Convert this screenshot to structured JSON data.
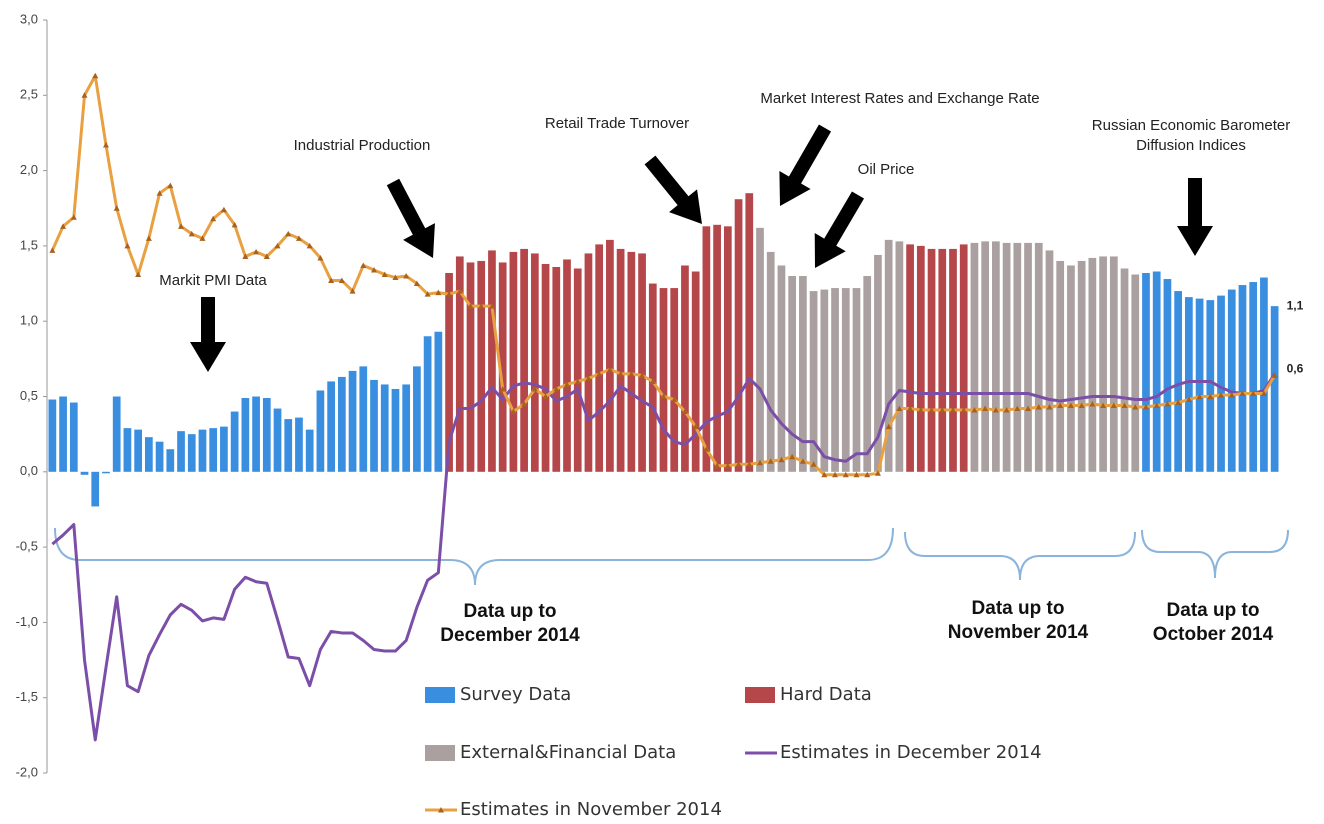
{
  "chart_data": {
    "type": "combo",
    "ylim": [
      -2,
      3
    ],
    "yticks": [
      {
        "value": 3,
        "label": "3,0"
      },
      {
        "value": 2.5,
        "label": "2,5"
      },
      {
        "value": 2,
        "label": "2,0"
      },
      {
        "value": 1.5,
        "label": "1,5"
      },
      {
        "value": 1,
        "label": "1,0"
      },
      {
        "value": 0.5,
        "label": "0,5"
      },
      {
        "value": 0,
        "label": "0,0"
      },
      {
        "value": -0.5,
        "label": "-0,5"
      },
      {
        "value": -1,
        "label": "-1,0"
      },
      {
        "value": -1.5,
        "label": "-1,5"
      },
      {
        "value": -2,
        "label": "-2,0"
      }
    ],
    "series": [
      {
        "name": "Survey Data",
        "type": "bar",
        "color": "#3a8ee0",
        "values": [
          0.48,
          0.5,
          0.46,
          -0.02,
          -0.23,
          -0.01,
          0.5,
          0.29,
          0.28,
          0.23,
          0.2,
          0.15,
          0.27,
          0.25,
          0.28,
          0.29,
          0.3,
          0.4,
          0.49,
          0.5,
          0.49,
          0.42,
          0.35,
          0.36,
          0.28,
          0.54,
          0.6,
          0.63,
          0.67,
          0.7,
          0.61,
          0.58,
          0.55,
          0.58,
          0.7,
          0.9,
          0.93,
          null,
          null,
          null,
          null,
          null,
          null,
          null,
          null,
          null,
          null,
          null,
          null,
          null,
          null,
          null,
          null,
          null,
          null,
          null,
          null,
          null,
          null,
          null,
          null,
          null,
          null,
          null,
          null,
          null,
          null,
          null,
          null,
          null,
          null,
          null,
          null,
          null,
          null,
          null,
          null,
          null,
          null,
          null,
          null,
          null,
          null,
          null,
          null,
          null,
          null,
          null,
          null,
          null,
          null,
          null,
          null,
          null,
          null,
          null,
          null,
          null,
          null,
          null,
          null,
          null,
          1.32,
          1.33,
          1.28,
          1.2,
          1.16,
          1.15,
          1.14,
          1.17,
          1.21,
          1.24,
          1.26,
          1.29,
          1.1
        ],
        "value_labels": [
          null,
          null,
          null,
          null,
          null,
          null,
          null,
          null,
          null,
          null,
          null,
          null,
          null,
          null,
          null,
          null,
          null,
          null,
          null,
          null,
          null,
          null,
          null,
          null,
          null,
          null,
          null,
          null,
          null,
          null,
          null,
          null,
          null,
          null,
          null,
          null,
          null,
          null,
          null,
          null,
          null,
          null,
          null,
          null,
          null,
          null,
          null,
          null,
          null,
          null,
          null,
          null,
          null,
          null,
          null,
          null,
          null,
          null,
          null,
          null,
          null,
          null,
          null,
          null,
          null,
          null,
          null,
          null,
          null,
          null,
          null,
          null,
          null,
          null,
          null,
          null,
          null,
          null,
          null,
          null,
          null,
          null,
          null,
          null,
          null,
          null,
          null,
          null,
          null,
          null,
          null,
          null,
          null,
          null,
          null,
          null,
          null,
          null,
          null,
          null,
          null,
          null,
          null,
          null,
          null,
          null,
          null,
          null,
          null,
          null,
          null,
          null,
          null,
          null,
          "1,1"
        ]
      },
      {
        "name": "Hard Data",
        "type": "bar",
        "color": "#b5474a",
        "values": [
          null,
          null,
          null,
          null,
          null,
          null,
          null,
          null,
          null,
          null,
          null,
          null,
          null,
          null,
          null,
          null,
          null,
          null,
          null,
          null,
          null,
          null,
          null,
          null,
          null,
          null,
          null,
          null,
          null,
          null,
          null,
          null,
          null,
          null,
          null,
          null,
          null,
          1.32,
          1.43,
          1.39,
          1.4,
          1.47,
          1.39,
          1.46,
          1.48,
          1.45,
          1.38,
          1.36,
          1.41,
          1.35,
          1.45,
          1.51,
          1.54,
          1.48,
          1.46,
          1.45,
          1.25,
          1.22,
          1.22,
          1.37,
          1.33,
          1.63,
          1.64,
          1.63,
          1.81,
          1.85,
          null,
          null,
          null,
          null,
          null,
          null,
          null,
          null,
          null,
          null,
          null,
          null,
          null,
          null,
          1.51,
          1.5,
          1.48,
          1.48,
          1.48,
          1.51,
          null,
          null,
          null,
          null,
          null,
          null,
          null,
          null,
          null,
          null,
          null,
          null,
          null,
          null,
          null,
          null,
          null,
          null,
          null,
          null,
          null,
          null,
          null,
          null,
          null,
          null,
          null,
          null,
          null
        ]
      },
      {
        "name": "External&Financial Data",
        "type": "bar",
        "color": "#aaa0a0",
        "values": [
          null,
          null,
          null,
          null,
          null,
          null,
          null,
          null,
          null,
          null,
          null,
          null,
          null,
          null,
          null,
          null,
          null,
          null,
          null,
          null,
          null,
          null,
          null,
          null,
          null,
          null,
          null,
          null,
          null,
          null,
          null,
          null,
          null,
          null,
          null,
          null,
          null,
          null,
          null,
          null,
          null,
          null,
          null,
          null,
          null,
          null,
          null,
          null,
          null,
          null,
          null,
          null,
          null,
          null,
          null,
          null,
          null,
          null,
          null,
          null,
          null,
          null,
          null,
          null,
          null,
          null,
          1.62,
          1.46,
          1.37,
          1.3,
          1.3,
          1.2,
          1.21,
          1.22,
          1.22,
          1.22,
          1.3,
          1.44,
          1.54,
          1.53,
          null,
          null,
          null,
          null,
          null,
          null,
          1.52,
          1.53,
          1.53,
          1.52,
          1.52,
          1.52,
          1.52,
          1.47,
          1.4,
          1.37,
          1.4,
          1.42,
          1.43,
          1.43,
          1.35,
          1.31,
          null,
          null,
          null,
          null,
          null,
          null,
          null,
          null,
          null,
          null,
          null,
          null,
          null
        ]
      },
      {
        "name": "Estimates in December 2014",
        "type": "line",
        "color": "#7b4fa8",
        "values": [
          -0.48,
          -0.42,
          -0.35,
          -1.25,
          -1.78,
          -1.3,
          -0.83,
          -1.42,
          -1.46,
          -1.22,
          -1.08,
          -0.95,
          -0.88,
          -0.92,
          -0.99,
          -0.97,
          -0.98,
          -0.78,
          -0.7,
          -0.73,
          -0.74,
          -0.98,
          -1.23,
          -1.24,
          -1.42,
          -1.18,
          -1.06,
          -1.07,
          -1.07,
          -1.12,
          -1.18,
          -1.19,
          -1.19,
          -1.12,
          -0.9,
          -0.72,
          -0.67,
          0.2,
          0.42,
          0.42,
          0.47,
          0.56,
          0.48,
          0.57,
          0.59,
          0.58,
          0.55,
          0.47,
          0.5,
          0.55,
          0.34,
          0.4,
          0.47,
          0.57,
          0.52,
          0.47,
          0.43,
          0.28,
          0.2,
          0.18,
          0.25,
          0.33,
          0.37,
          0.4,
          0.5,
          0.62,
          0.55,
          0.41,
          0.32,
          0.25,
          0.2,
          0.2,
          0.1,
          0.08,
          0.07,
          0.12,
          0.12,
          0.23,
          0.45,
          0.54,
          0.53,
          0.52,
          0.52,
          0.52,
          0.52,
          0.52,
          0.52,
          0.52,
          0.52,
          0.52,
          0.52,
          0.52,
          0.5,
          0.48,
          0.47,
          0.48,
          0.49,
          0.5,
          0.5,
          0.5,
          0.49,
          0.48,
          0.48,
          0.5,
          0.55,
          0.58,
          0.6,
          0.6,
          0.6,
          0.56,
          0.53,
          0.52,
          0.52,
          0.54,
          0.65
        ]
      },
      {
        "name": "Estimates in November 2014",
        "type": "line",
        "color": "#e8a040",
        "marker_color": "#a8621e",
        "values": [
          1.47,
          1.63,
          1.69,
          2.5,
          2.63,
          2.17,
          1.75,
          1.5,
          1.31,
          1.55,
          1.85,
          1.9,
          1.63,
          1.58,
          1.55,
          1.68,
          1.74,
          1.64,
          1.43,
          1.46,
          1.43,
          1.5,
          1.58,
          1.55,
          1.5,
          1.42,
          1.27,
          1.27,
          1.2,
          1.37,
          1.34,
          1.31,
          1.29,
          1.3,
          1.25,
          1.18,
          1.19,
          1.18,
          1.2,
          1.1,
          1.1,
          1.1,
          0.55,
          0.4,
          0.45,
          0.55,
          0.5,
          0.55,
          0.58,
          0.6,
          0.62,
          0.65,
          0.68,
          0.65,
          0.65,
          0.64,
          0.6,
          0.5,
          0.48,
          0.4,
          0.3,
          0.15,
          0.04,
          0.04,
          0.05,
          0.05,
          0.06,
          0.07,
          0.08,
          0.1,
          0.07,
          0.05,
          -0.02,
          -0.02,
          -0.02,
          -0.02,
          -0.02,
          -0.01,
          0.3,
          0.42,
          0.42,
          0.41,
          0.41,
          0.41,
          0.41,
          0.41,
          0.41,
          0.42,
          0.41,
          0.41,
          0.42,
          0.42,
          0.43,
          0.43,
          0.44,
          0.44,
          0.44,
          0.45,
          0.44,
          0.44,
          0.44,
          0.43,
          0.43,
          0.44,
          0.45,
          0.46,
          0.48,
          0.5,
          0.5,
          0.51,
          0.51,
          0.52,
          0.52,
          0.52,
          0.64
        ],
        "value_labels": [
          null,
          null,
          null,
          null,
          null,
          null,
          null,
          null,
          null,
          null,
          null,
          null,
          null,
          null,
          null,
          null,
          null,
          null,
          null,
          null,
          null,
          null,
          null,
          null,
          null,
          null,
          null,
          null,
          null,
          null,
          null,
          null,
          null,
          null,
          null,
          null,
          null,
          null,
          null,
          null,
          null,
          null,
          null,
          null,
          null,
          null,
          null,
          null,
          null,
          null,
          null,
          null,
          null,
          null,
          null,
          null,
          null,
          null,
          null,
          null,
          null,
          null,
          null,
          null,
          null,
          null,
          null,
          null,
          null,
          null,
          null,
          null,
          null,
          null,
          null,
          null,
          null,
          null,
          null,
          null,
          null,
          null,
          null,
          null,
          null,
          null,
          null,
          null,
          null,
          null,
          null,
          null,
          null,
          null,
          null,
          null,
          null,
          null,
          null,
          null,
          null,
          null,
          null,
          null,
          null,
          null,
          null,
          null,
          null,
          null,
          null,
          null,
          null,
          null,
          "0,6"
        ]
      }
    ],
    "annotations": [
      {
        "text": [
          "Markit PMI Data"
        ]
      },
      {
        "text": [
          "Industrial Production"
        ]
      },
      {
        "text": [
          "Retail Trade Turnover"
        ]
      },
      {
        "text": [
          "Market Interest Rates and Exchange Rate"
        ]
      },
      {
        "text": [
          "Oil Price"
        ]
      },
      {
        "text": [
          "Russian  Economic Barometer",
          "Diffusion Indices"
        ]
      },
      {
        "text": [
          "Data up to",
          "December 2014"
        ]
      },
      {
        "text": [
          "Data up to",
          "November 2014"
        ]
      },
      {
        "text": [
          "Data up to",
          "October 2014"
        ]
      }
    ]
  }
}
